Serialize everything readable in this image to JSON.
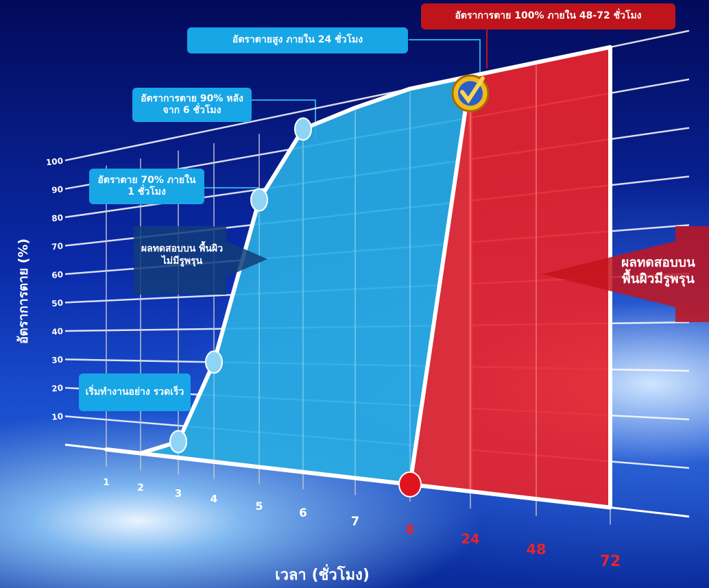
{
  "chart_data": {
    "type": "area",
    "x_label": "เวลา (ชั่วโมง)",
    "y_label": "อัตราการตาย (%)",
    "categories": [
      "1",
      "2",
      "3",
      "4",
      "5",
      "6",
      "7",
      "8",
      "24",
      "48",
      "72"
    ],
    "series": [
      {
        "name": "ผลทดสอบบน พื้นผิวไม่มีรูพรุน",
        "color": "#29abe2",
        "values": [
          0,
          0,
          5,
          30,
          77,
          95,
          98,
          100,
          100,
          null,
          null
        ]
      },
      {
        "name": "ผลทดสอบบน พื้นผิวมีรูพรุน",
        "color": "#e8242c",
        "values": [
          null,
          null,
          null,
          null,
          null,
          null,
          null,
          0,
          100,
          100,
          100
        ]
      }
    ],
    "ylim": [
      0,
      100
    ],
    "yticks": [
      10,
      20,
      30,
      40,
      50,
      60,
      70,
      80,
      90,
      100
    ],
    "grid": true,
    "annotations": [
      {
        "text": "อัตราตายสูง ภายใน 24 ชั่วโมง",
        "color": "#17a6e6"
      },
      {
        "text": "อัตราการตาย 100% ภายใน 48-72 ชั่วโมง",
        "color": "#c0141c"
      },
      {
        "text": "อัตราการตาย 90% หลัง จาก 6 ชั่วโมง",
        "color": "#17a6e6"
      },
      {
        "text": "อัตราตาย 70% ภายใน 1 ชั่วโมง",
        "color": "#17a6e6"
      },
      {
        "text": "เริ่มทำงานอย่าง รวดเร็ว",
        "color": "#17a6e6"
      }
    ]
  }
}
